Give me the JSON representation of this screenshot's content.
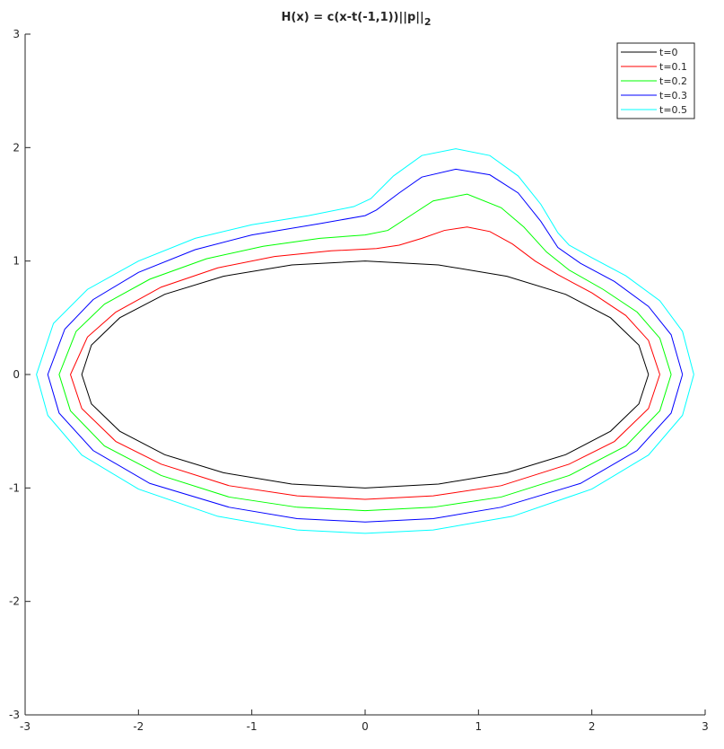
{
  "chart_data": {
    "type": "line",
    "title": "H(x) = c(x-t(-1,1))||p||",
    "title_subscript": "2",
    "xlim": [
      -3,
      3
    ],
    "ylim": [
      -3,
      3
    ],
    "xticks": [
      -3,
      -2,
      -1,
      0,
      1,
      2,
      3
    ],
    "yticks": [
      -3,
      -2,
      -1,
      0,
      1,
      2,
      3
    ],
    "grid": false,
    "legend_position": "upper-right",
    "series": [
      {
        "name": "t=0",
        "color": "#000000",
        "x": [
          2.5,
          2.415,
          2.165,
          1.768,
          1.25,
          0.647,
          0,
          -0.647,
          -1.25,
          -1.768,
          -2.165,
          -2.415,
          -2.5,
          -2.415,
          -2.165,
          -1.768,
          -1.25,
          -0.647,
          0,
          0.647,
          1.25,
          1.768,
          2.165,
          2.415,
          2.5
        ],
        "values": [
          0,
          0.259,
          0.5,
          0.707,
          0.866,
          0.966,
          1,
          0.966,
          0.866,
          0.707,
          0.5,
          0.259,
          0,
          -0.259,
          -0.5,
          -0.707,
          -0.866,
          -0.966,
          -1,
          -0.966,
          -0.866,
          -0.707,
          -0.5,
          -0.259,
          0
        ]
      },
      {
        "name": "t=0.1",
        "color": "#ff0000",
        "x": [
          2.6,
          2.5,
          2.3,
          2.0,
          1.7,
          1.5,
          1.3,
          1.1,
          0.9,
          0.7,
          0.5,
          0.3,
          0.1,
          -0.3,
          -0.8,
          -1.3,
          -1.8,
          -2.2,
          -2.45,
          -2.6,
          -2.5,
          -2.2,
          -1.8,
          -1.2,
          -0.6,
          0,
          0.6,
          1.2,
          1.8,
          2.2,
          2.5,
          2.6
        ],
        "values": [
          0,
          0.3,
          0.52,
          0.72,
          0.88,
          1.0,
          1.15,
          1.26,
          1.3,
          1.27,
          1.2,
          1.14,
          1.11,
          1.09,
          1.04,
          0.94,
          0.77,
          0.55,
          0.33,
          0,
          -0.3,
          -0.59,
          -0.79,
          -0.98,
          -1.07,
          -1.1,
          -1.07,
          -0.98,
          -0.79,
          -0.59,
          -0.3,
          0
        ]
      },
      {
        "name": "t=0.2",
        "color": "#00ff00",
        "x": [
          2.7,
          2.6,
          2.4,
          2.1,
          1.8,
          1.6,
          1.4,
          1.2,
          0.9,
          0.6,
          0.4,
          0.2,
          0,
          -0.4,
          -0.9,
          -1.4,
          -1.9,
          -2.3,
          -2.55,
          -2.7,
          -2.6,
          -2.3,
          -1.8,
          -1.2,
          -0.6,
          0,
          0.6,
          1.2,
          1.8,
          2.3,
          2.6,
          2.7
        ],
        "values": [
          0,
          0.32,
          0.55,
          0.75,
          0.92,
          1.08,
          1.3,
          1.47,
          1.59,
          1.53,
          1.4,
          1.27,
          1.23,
          1.2,
          1.13,
          1.02,
          0.84,
          0.62,
          0.38,
          0,
          -0.32,
          -0.63,
          -0.89,
          -1.08,
          -1.17,
          -1.2,
          -1.17,
          -1.08,
          -0.89,
          -0.63,
          -0.32,
          0
        ]
      },
      {
        "name": "t=0.3",
        "color": "#0000ff",
        "x": [
          2.8,
          2.7,
          2.5,
          2.2,
          1.9,
          1.7,
          1.55,
          1.35,
          1.1,
          0.8,
          0.5,
          0.3,
          0.1,
          0,
          -0.4,
          -1.0,
          -1.5,
          -2.0,
          -2.4,
          -2.65,
          -2.8,
          -2.7,
          -2.4,
          -1.9,
          -1.2,
          -0.6,
          0,
          0.6,
          1.2,
          1.9,
          2.4,
          2.7,
          2.8
        ],
        "values": [
          0,
          0.35,
          0.6,
          0.82,
          0.98,
          1.12,
          1.35,
          1.6,
          1.76,
          1.81,
          1.74,
          1.6,
          1.45,
          1.4,
          1.33,
          1.23,
          1.1,
          0.9,
          0.66,
          0.4,
          0,
          -0.34,
          -0.67,
          -0.96,
          -1.17,
          -1.27,
          -1.3,
          -1.27,
          -1.17,
          -0.96,
          -0.67,
          -0.34,
          0
        ]
      },
      {
        "name": "t=0.5",
        "color": "#00ffff",
        "x": [
          2.9,
          2.8,
          2.6,
          2.3,
          2.0,
          1.8,
          1.7,
          1.55,
          1.35,
          1.1,
          0.8,
          0.5,
          0.25,
          0.05,
          -0.1,
          -0.5,
          -1.0,
          -1.5,
          -2.0,
          -2.45,
          -2.75,
          -2.9,
          -2.8,
          -2.5,
          -2.0,
          -1.3,
          -0.6,
          0,
          0.6,
          1.3,
          2.0,
          2.5,
          2.8,
          2.9
        ],
        "values": [
          0,
          0.38,
          0.65,
          0.87,
          1.03,
          1.14,
          1.25,
          1.5,
          1.75,
          1.93,
          1.99,
          1.93,
          1.75,
          1.55,
          1.48,
          1.4,
          1.32,
          1.2,
          1.0,
          0.75,
          0.45,
          0,
          -0.36,
          -0.71,
          -1.01,
          -1.25,
          -1.37,
          -1.4,
          -1.37,
          -1.25,
          -1.01,
          -0.71,
          -0.36,
          0
        ]
      }
    ]
  }
}
